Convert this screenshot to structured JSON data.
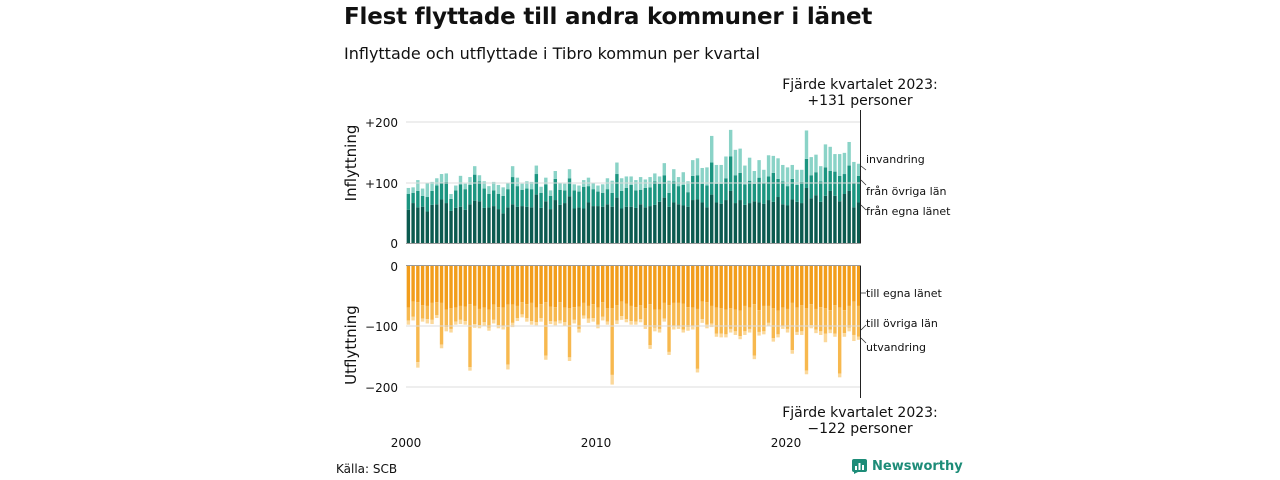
{
  "title": "Flest flyttade till andra kommuner i länet",
  "subtitle": "Inflyttade och utflyttade i Tibro kommun per kvartal",
  "source": "Källa: SCB",
  "brand": "Newsworthy",
  "annotations": {
    "top_line1": "Fjärde kvartalet 2023:",
    "top_line2": "+131 personer",
    "bottom_line1": "Fjärde kvartalet 2023:",
    "bottom_line2": "−122 personer"
  },
  "colors": {
    "in_county": "#0b5a4f",
    "in_other": "#1b9580",
    "in_immigration": "#8ad3c7",
    "out_county": "#f29d1b",
    "out_other": "#f7b84e",
    "out_emigration": "#fbd89a"
  },
  "chart_data": [
    {
      "type": "bar",
      "stacked": true,
      "ylabel": "Inflyttning",
      "ylim": [
        0,
        200
      ],
      "yticks": [
        "0",
        "+100",
        "+200"
      ],
      "xticks": [
        "2000",
        "2010",
        "2020"
      ],
      "x_start": "2000 Q1",
      "x_end": "2023 Q4",
      "series": [
        {
          "name": "från egna länet",
          "values": [
            55,
            66,
            59,
            60,
            52,
            63,
            64,
            72,
            66,
            53,
            58,
            60,
            55,
            64,
            70,
            69,
            58,
            59,
            61,
            56,
            49,
            59,
            64,
            60,
            61,
            60,
            59,
            80,
            58,
            69,
            56,
            71,
            63,
            66,
            77,
            57,
            59,
            57,
            67,
            61,
            61,
            60,
            64,
            60,
            75,
            57,
            60,
            60,
            58,
            64,
            59,
            61,
            63,
            68,
            75,
            60,
            67,
            64,
            62,
            60,
            71,
            72,
            67,
            59,
            80,
            67,
            65,
            71,
            86,
            66,
            71,
            63,
            66,
            69,
            67,
            65,
            71,
            68,
            76,
            64,
            62,
            72,
            68,
            66,
            91,
            74,
            79,
            68,
            78,
            86,
            78,
            69,
            81,
            86,
            59,
            67
          ]
        },
        {
          "name": "från övriga län",
          "values": [
            26,
            17,
            27,
            18,
            24,
            23,
            31,
            28,
            35,
            20,
            29,
            37,
            34,
            32,
            43,
            33,
            32,
            22,
            26,
            25,
            29,
            30,
            45,
            34,
            27,
            30,
            30,
            34,
            25,
            28,
            22,
            35,
            25,
            21,
            30,
            30,
            26,
            36,
            27,
            28,
            24,
            23,
            25,
            23,
            39,
            29,
            31,
            36,
            29,
            24,
            32,
            31,
            39,
            30,
            37,
            23,
            35,
            30,
            34,
            24,
            40,
            40,
            31,
            36,
            53,
            31,
            33,
            36,
            57,
            46,
            45,
            34,
            37,
            29,
            41,
            34,
            39,
            48,
            30,
            38,
            32,
            34,
            28,
            35,
            48,
            38,
            38,
            34,
            47,
            33,
            40,
            42,
            33,
            42,
            40,
            44
          ]
        },
        {
          "name": "invandring",
          "values": [
            10,
            9,
            18,
            12,
            23,
            15,
            12,
            14,
            14,
            8,
            8,
            14,
            9,
            13,
            14,
            10,
            12,
            13,
            14,
            15,
            14,
            10,
            18,
            14,
            10,
            12,
            12,
            14,
            10,
            11,
            9,
            13,
            12,
            11,
            15,
            10,
            10,
            11,
            14,
            10,
            10,
            14,
            18,
            20,
            19,
            21,
            19,
            14,
            17,
            21,
            14,
            17,
            13,
            12,
            20,
            20,
            20,
            15,
            21,
            18,
            26,
            28,
            26,
            30,
            44,
            31,
            31,
            36,
            44,
            42,
            40,
            31,
            38,
            21,
            29,
            22,
            35,
            28,
            34,
            27,
            31,
            23,
            25,
            20,
            47,
            30,
            29,
            25,
            38,
            40,
            29,
            36,
            35,
            39,
            35,
            20
          ]
        }
      ]
    },
    {
      "type": "bar",
      "stacked": true,
      "ylabel": "Utflyttning",
      "ylim": [
        -200,
        0
      ],
      "yticks": [
        "0",
        "−100",
        "−200"
      ],
      "xticks": [
        "2000",
        "2010",
        "2020"
      ],
      "x_start": "2000 Q1",
      "x_end": "2023 Q4",
      "series": [
        {
          "name": "till egna länet",
          "values": [
            -69,
            -59,
            -60,
            -65,
            -66,
            -61,
            -60,
            -61,
            -72,
            -70,
            -69,
            -66,
            -67,
            -63,
            -66,
            -71,
            -69,
            -72,
            -64,
            -68,
            -69,
            -64,
            -64,
            -66,
            -60,
            -63,
            -61,
            -69,
            -63,
            -60,
            -67,
            -68,
            -60,
            -69,
            -70,
            -68,
            -67,
            -61,
            -66,
            -63,
            -69,
            -60,
            -70,
            -70,
            -65,
            -59,
            -62,
            -66,
            -68,
            -65,
            -70,
            -63,
            -72,
            -72,
            -61,
            -65,
            -61,
            -61,
            -62,
            -68,
            -69,
            -71,
            -59,
            -60,
            -66,
            -69,
            -70,
            -72,
            -70,
            -72,
            -74,
            -66,
            -69,
            -63,
            -73,
            -66,
            -66,
            -70,
            -74,
            -69,
            -71,
            -61,
            -69,
            -65,
            -70,
            -63,
            -71,
            -68,
            -70,
            -73,
            -65,
            -69,
            -73,
            -66,
            -59,
            -66
          ]
        },
        {
          "name": "till övriga län",
          "values": [
            -21,
            -25,
            -99,
            -22,
            -22,
            -28,
            -21,
            -69,
            -29,
            -34,
            -23,
            -23,
            -24,
            -104,
            -30,
            -27,
            -24,
            -30,
            -25,
            -30,
            -30,
            -99,
            -30,
            -20,
            -20,
            -23,
            -30,
            -24,
            -23,
            -88,
            -24,
            -24,
            -30,
            -24,
            -81,
            -21,
            -37,
            -21,
            -21,
            -23,
            -28,
            -24,
            -22,
            -110,
            -25,
            -24,
            -26,
            -25,
            -24,
            -23,
            -28,
            -68,
            -30,
            -32,
            -26,
            -77,
            -38,
            -38,
            -43,
            -33,
            -31,
            -99,
            -29,
            -37,
            -29,
            -43,
            -42,
            -41,
            -34,
            -36,
            -42,
            -42,
            -35,
            -85,
            -36,
            -42,
            -28,
            -49,
            -39,
            -30,
            -33,
            -78,
            -40,
            -43,
            -103,
            -35,
            -34,
            -40,
            -42,
            -32,
            -47,
            -109,
            -38,
            -36,
            -55,
            -51
          ]
        },
        {
          "name": "utvandring",
          "values": [
            -7,
            -6,
            -9,
            -5,
            -7,
            -7,
            -5,
            -6,
            -7,
            -6,
            -5,
            -7,
            -6,
            -6,
            -6,
            -5,
            -6,
            -5,
            -6,
            -5,
            -6,
            -8,
            -7,
            -5,
            -5,
            -6,
            -6,
            -5,
            -6,
            -7,
            -5,
            -6,
            -5,
            -6,
            -6,
            -6,
            -6,
            -5,
            -7,
            -6,
            -6,
            -6,
            -5,
            -16,
            -6,
            -6,
            -5,
            -6,
            -5,
            -5,
            -6,
            -6,
            -6,
            -6,
            -5,
            -5,
            -6,
            -5,
            -5,
            -6,
            -5,
            -6,
            -6,
            -6,
            -6,
            -5,
            -6,
            -5,
            -6,
            -6,
            -5,
            -6,
            -6,
            -6,
            -6,
            -5,
            -6,
            -6,
            -5,
            -5,
            -6,
            -6,
            -5,
            -6,
            -6,
            -5,
            -6,
            -6,
            -14,
            -6,
            -5,
            -6,
            -6,
            -6,
            -10,
            -5
          ]
        }
      ]
    }
  ]
}
